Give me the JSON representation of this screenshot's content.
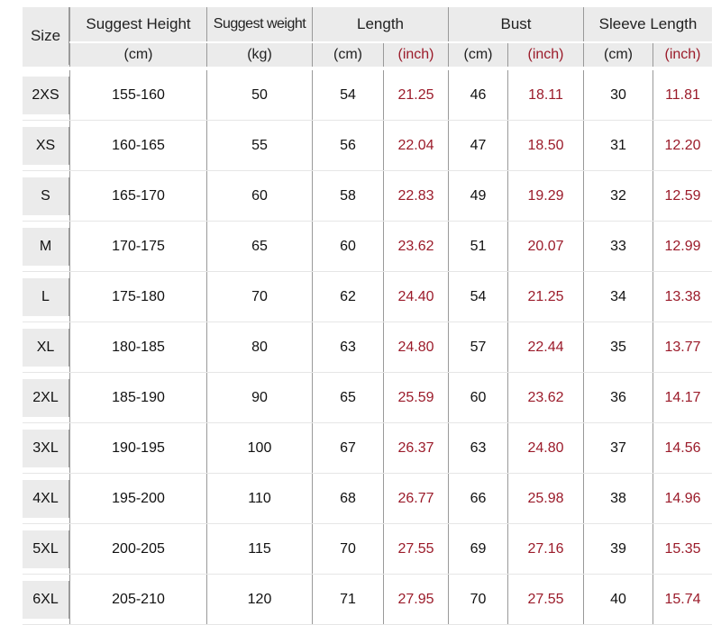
{
  "header": {
    "size": "Size",
    "height": "Suggest Height",
    "weight": "Suggest weight",
    "length": "Length",
    "bust": "Bust",
    "sleeve": "Sleeve Length",
    "units": {
      "height": "(cm)",
      "weight": "(kg)",
      "length_cm": "(cm)",
      "length_inch": "(inch)",
      "bust_cm": "(cm)",
      "bust_inch": "(inch)",
      "sleeve_cm": "(cm)",
      "sleeve_inch": "(inch)"
    }
  },
  "colors": {
    "inch_text": "#9b1b2a",
    "header_bg": "#ebebeb"
  },
  "rows": [
    {
      "size": "2XS",
      "height": "155-160",
      "weight": "50",
      "length_cm": "54",
      "length_inch": "21.25",
      "bust_cm": "46",
      "bust_inch": "18.11",
      "sleeve_cm": "30",
      "sleeve_inch": "11.81"
    },
    {
      "size": "XS",
      "height": "160-165",
      "weight": "55",
      "length_cm": "56",
      "length_inch": "22.04",
      "bust_cm": "47",
      "bust_inch": "18.50",
      "sleeve_cm": "31",
      "sleeve_inch": "12.20"
    },
    {
      "size": "S",
      "height": "165-170",
      "weight": "60",
      "length_cm": "58",
      "length_inch": "22.83",
      "bust_cm": "49",
      "bust_inch": "19.29",
      "sleeve_cm": "32",
      "sleeve_inch": "12.59"
    },
    {
      "size": "M",
      "height": "170-175",
      "weight": "65",
      "length_cm": "60",
      "length_inch": "23.62",
      "bust_cm": "51",
      "bust_inch": "20.07",
      "sleeve_cm": "33",
      "sleeve_inch": "12.99"
    },
    {
      "size": "L",
      "height": "175-180",
      "weight": "70",
      "length_cm": "62",
      "length_inch": "24.40",
      "bust_cm": "54",
      "bust_inch": "21.25",
      "sleeve_cm": "34",
      "sleeve_inch": "13.38"
    },
    {
      "size": "XL",
      "height": "180-185",
      "weight": "80",
      "length_cm": "63",
      "length_inch": "24.80",
      "bust_cm": "57",
      "bust_inch": "22.44",
      "sleeve_cm": "35",
      "sleeve_inch": "13.77"
    },
    {
      "size": "2XL",
      "height": "185-190",
      "weight": "90",
      "length_cm": "65",
      "length_inch": "25.59",
      "bust_cm": "60",
      "bust_inch": "23.62",
      "sleeve_cm": "36",
      "sleeve_inch": "14.17"
    },
    {
      "size": "3XL",
      "height": "190-195",
      "weight": "100",
      "length_cm": "67",
      "length_inch": "26.37",
      "bust_cm": "63",
      "bust_inch": "24.80",
      "sleeve_cm": "37",
      "sleeve_inch": "14.56"
    },
    {
      "size": "4XL",
      "height": "195-200",
      "weight": "110",
      "length_cm": "68",
      "length_inch": "26.77",
      "bust_cm": "66",
      "bust_inch": "25.98",
      "sleeve_cm": "38",
      "sleeve_inch": "14.96"
    },
    {
      "size": "5XL",
      "height": "200-205",
      "weight": "115",
      "length_cm": "70",
      "length_inch": "27.55",
      "bust_cm": "69",
      "bust_inch": "27.16",
      "sleeve_cm": "39",
      "sleeve_inch": "15.35"
    },
    {
      "size": "6XL",
      "height": "205-210",
      "weight": "120",
      "length_cm": "71",
      "length_inch": "27.95",
      "bust_cm": "70",
      "bust_inch": "27.55",
      "sleeve_cm": "40",
      "sleeve_inch": "15.74"
    }
  ]
}
